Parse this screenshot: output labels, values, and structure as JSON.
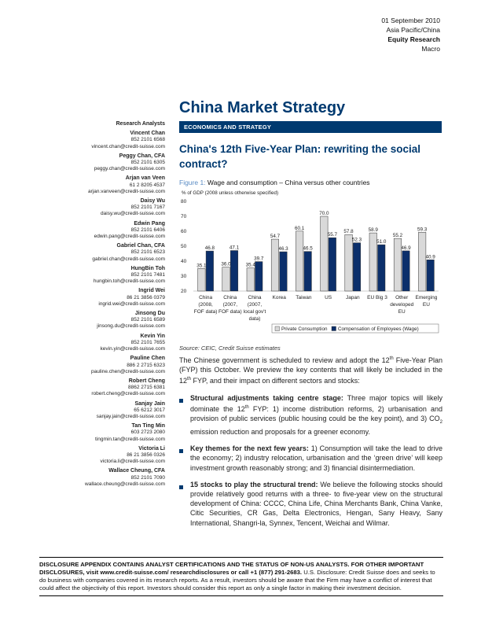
{
  "header": {
    "date": "01 September 2010",
    "region": "Asia Pacific/China",
    "category": "Equity Research",
    "sector": "Macro"
  },
  "title": "China Market Strategy",
  "band_label": "ECONOMICS AND STRATEGY",
  "subtitle": "China's 12th Five-Year Plan: rewriting the social contract?",
  "figure": {
    "label": "Figure 1:",
    "title": "Wage and consumption – China versus other countries",
    "source": "Source: CEIC, Credit Suisse estimates"
  },
  "chart_data": {
    "type": "bar",
    "ylabel": "% of GDP (2008 unless otherwise specified)",
    "ylim": [
      20,
      80
    ],
    "yticks": [
      "20",
      "30",
      "40",
      "50",
      "60",
      "70",
      "80"
    ],
    "categories": [
      [
        "China",
        "(2008,",
        "FOF data)"
      ],
      [
        "China",
        "(2007,",
        "FOF data)"
      ],
      [
        "China",
        "(2007,",
        "local gov't",
        "data)"
      ],
      [
        "Korea"
      ],
      [
        "Taiwan"
      ],
      [
        "US"
      ],
      [
        "Japan"
      ],
      [
        "EU Big 3"
      ],
      [
        "Other",
        "developed",
        "EU"
      ],
      [
        "Emerging",
        "EU"
      ]
    ],
    "series": [
      {
        "name": "Private Consumption",
        "color": "#d9d9d9",
        "values": [
          35.1,
          36.0,
          35.4,
          54.7,
          60.1,
          70.0,
          57.8,
          58.9,
          55.2,
          59.3
        ]
      },
      {
        "name": "Compensation of Employees (Wage)",
        "color": "#0b2f6b",
        "values": [
          46.8,
          47.1,
          39.7,
          46.3,
          46.5,
          55.7,
          52.3,
          51.0,
          46.9,
          40.9
        ]
      }
    ],
    "value_labels": [
      [
        "35.1",
        "36.0",
        "35.4",
        "54.7",
        "60.1",
        "70.0",
        "57.8",
        "58.9",
        "55.2",
        "59.3"
      ],
      [
        "46.8",
        "47.1",
        "39.7",
        "46.3",
        "46.5",
        "55.7",
        "52.3",
        "51.0",
        "46.9",
        "40.9"
      ]
    ],
    "legend_position": "bottom-right"
  },
  "body": {
    "intro_a": "The Chinese government is scheduled to review and adopt the 12",
    "intro_sup": "th",
    "intro_b": " Five-Year Plan (FYP) this October. We preview the key contents that will likely be included in the 12",
    "intro_sup2": "th",
    "intro_c": " FYP, and their impact on different sectors and stocks:",
    "bullets": [
      {
        "lead": "Structural adjustments taking centre stage:",
        "a": " Three major topics will likely dominate the 12",
        "sup": "th",
        "b": " FYP: 1) income distribution reforms, 2) urbanisation and provision of public services (public housing could be the key point), and 3) CO",
        "sub": "2",
        "c": " emission reduction and proposals for a greener economy."
      },
      {
        "lead": "Key themes for the next few years:",
        "text": " 1) Consumption will take the lead to drive the economy; 2) industry relocation, urbanisation and the ‘green drive’ will keep investment growth reasonably strong; and 3) financial disintermediation."
      },
      {
        "lead": "15 stocks to play the structural trend:",
        "text": " We believe the following stocks should provide relatively good returns with a three- to five-year view on the structural development of China: CCCC, China Life, China Merchants Bank, China Vanke, Citic Securities, CR Gas, Delta Electronics, Hengan, Sany Heavy, Sany International, Shangri-la, Synnex, Tencent, Weichai and Wilmar."
      }
    ]
  },
  "analysts": {
    "title": "Research Analysts",
    "list": [
      {
        "name": "Vincent Chan",
        "phone": "852 2101 6568",
        "email": "vincent.chan@credit-suisse.com"
      },
      {
        "name": "Peggy Chan, CFA",
        "phone": "852 2101 6305",
        "email": "peggy.chan@credit-suisse.com"
      },
      {
        "name": "Arjan van Veen",
        "phone": "61 2 8205 4537",
        "email": "arjan.vanveen@credit-suisse.com"
      },
      {
        "name": "Daisy Wu",
        "phone": "852 2101 7167",
        "email": "daisy.wu@credit-suisse.com"
      },
      {
        "name": "Edwin Pang",
        "phone": "852 2101 6406",
        "email": "edwin.pang@credit-suisse.com"
      },
      {
        "name": "Gabriel Chan, CFA",
        "phone": "852 2101 6523",
        "email": "gabriel.chan@credit-suisse.com"
      },
      {
        "name": "HungBin Toh",
        "phone": "852 2101 7481",
        "email": "hungbin.toh@credit-suisse.com"
      },
      {
        "name": "Ingrid Wei",
        "phone": "86 21 3856 0379",
        "email": "ingrid.wei@credit-suisse.com"
      },
      {
        "name": "Jinsong Du",
        "phone": "852 2101 6589",
        "email": "jinsong.du@credit-suisse.com"
      },
      {
        "name": "Kevin Yin",
        "phone": "852 2101 7655",
        "email": "kevin.yin@credit-suisse.com"
      },
      {
        "name": "Pauline Chen",
        "phone": "886 2 2715 6323",
        "email": "pauline.chen@credit-suisse.com"
      },
      {
        "name": "Robert Cheng",
        "phone": "8862 2715 6381",
        "email": "robert.cheng@credit-suisse.com"
      },
      {
        "name": "Sanjay Jain",
        "phone": "65 6212 3017",
        "email": "sanjay.jain@credit-suisse.com"
      },
      {
        "name": "Tan Ting Min",
        "phone": "603 2723 2080",
        "email": "tingmin.tan@credit-suisse.com"
      },
      {
        "name": "Victoria Li",
        "phone": "86 21 3856 0326",
        "email": "victoria.li@credit-suisse.com"
      },
      {
        "name": "Wallace Cheung, CFA",
        "phone": "852 2101 7090",
        "email": "wallace.cheung@credit-suisse.com"
      }
    ]
  },
  "disclosure": {
    "bold": "DISCLOSURE APPENDIX CONTAINS ANALYST CERTIFICATIONS AND THE STATUS OF NON-US ANALYSTS. FOR OTHER IMPORTANT DISCLOSURES, visit www.credit-suisse.com/ researchdisclosures or call +1 (877) 291-2683.",
    "text": " U.S. Disclosure: Credit Suisse does and seeks to do business with companies covered in its research reports. As a result, investors should be aware that the Firm may have a conflict of interest that could affect the objectivity of this report. Investors should consider this report as only a single factor in making their investment decision."
  }
}
